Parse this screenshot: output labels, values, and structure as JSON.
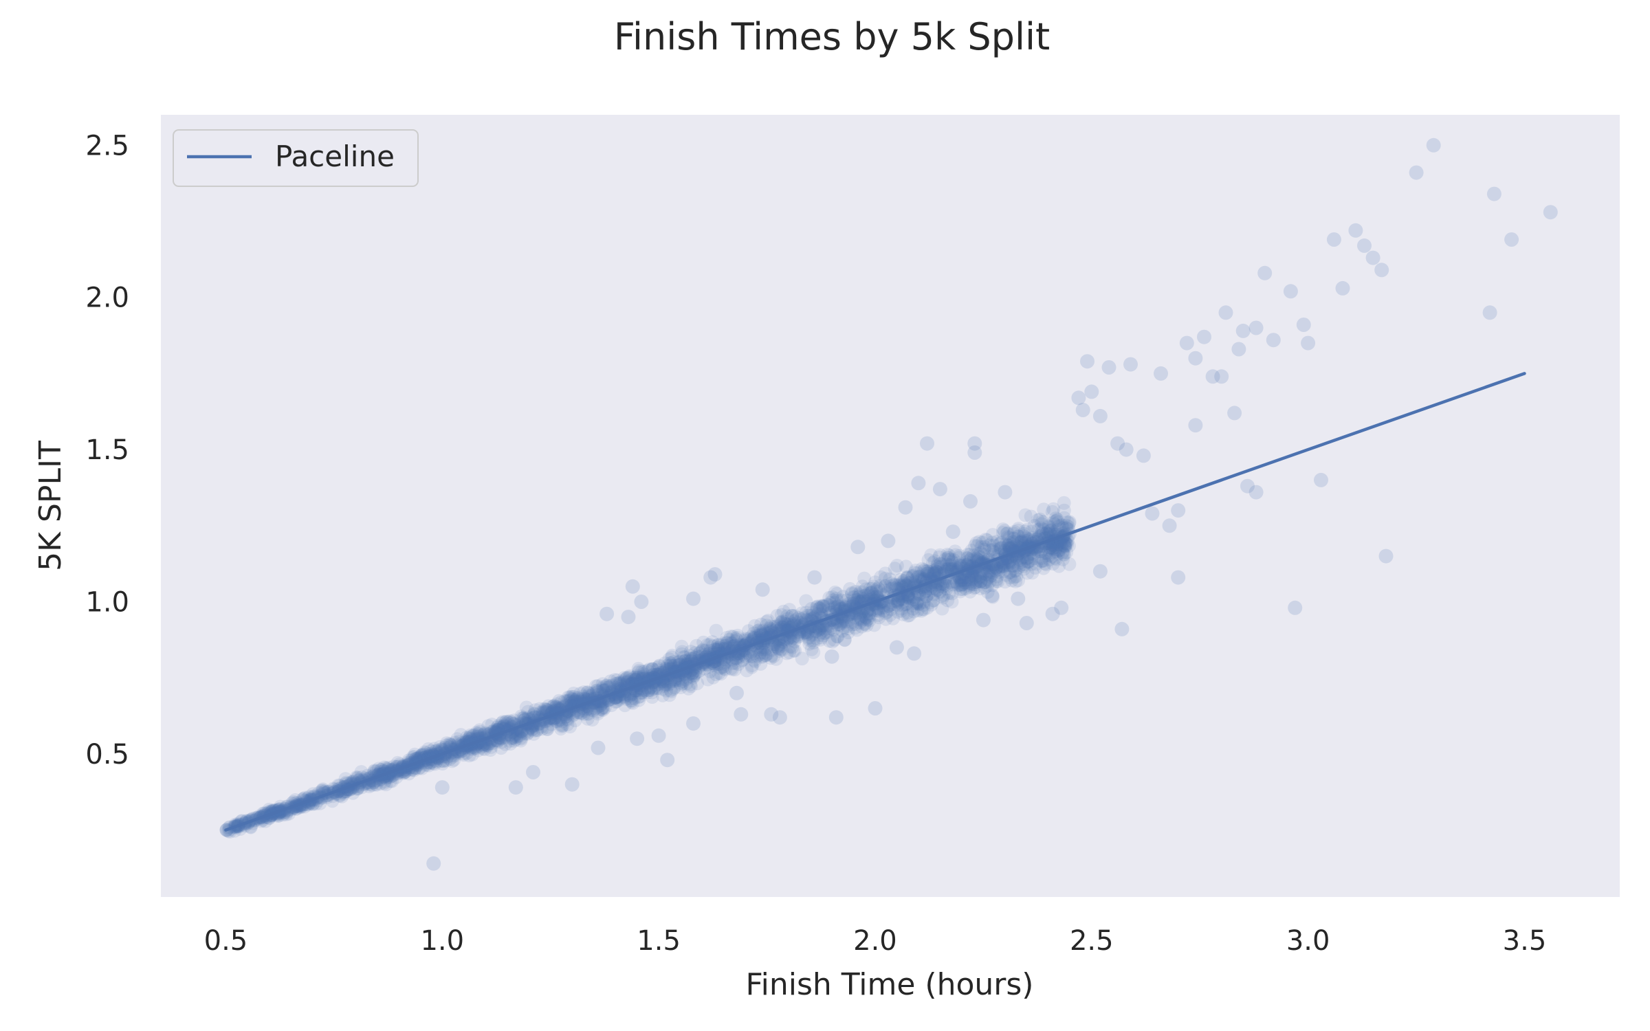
{
  "chart_data": {
    "type": "scatter",
    "title": "Finish Times by 5k Split",
    "xlabel": "Finish Time (hours)",
    "ylabel": "5K SPLIT",
    "xlim": [
      0.35,
      3.72
    ],
    "ylim": [
      0.03,
      2.6
    ],
    "x_ticks": [
      0.5,
      1.0,
      1.5,
      2.0,
      2.5,
      3.0,
      3.5
    ],
    "y_ticks": [
      0.5,
      1.0,
      1.5,
      2.0,
      2.5
    ],
    "x_tick_labels": [
      "0.5",
      "1.0",
      "1.5",
      "2.0",
      "2.5",
      "3.0",
      "3.5"
    ],
    "y_tick_labels": [
      "0.5",
      "1.0",
      "1.5",
      "2.0",
      "2.5"
    ],
    "grid": false,
    "legend_position": "top-left",
    "colors": {
      "background": "#eaeaf2",
      "series": "#4c72b0"
    },
    "series": [
      {
        "name": "Paceline",
        "kind": "line",
        "x": [
          0.5,
          3.5
        ],
        "y": [
          0.25,
          1.75
        ]
      },
      {
        "kind": "scatter",
        "x": [
          3.29,
          3.25,
          3.43,
          3.56,
          3.47,
          3.06,
          3.11,
          3.13,
          3.15,
          3.17,
          3.08,
          3.42,
          2.9,
          2.96,
          2.81,
          2.85,
          2.88,
          2.84,
          2.92,
          2.99,
          3.0,
          2.76,
          2.72,
          2.66,
          2.59,
          2.54,
          2.49,
          2.5,
          2.47,
          2.74,
          2.78,
          2.8,
          2.83,
          2.74,
          2.12,
          2.23,
          2.23,
          2.48,
          2.52,
          2.56,
          2.58,
          2.62,
          2.86,
          2.88,
          3.03,
          3.18,
          2.97,
          2.7,
          2.57,
          2.43,
          2.41,
          2.35,
          2.25,
          1.69,
          1.76,
          1.78,
          1.91,
          2.0,
          2.09,
          1.52,
          1.5,
          1.3,
          1.17,
          0.98,
          1.0,
          1.43,
          1.62,
          1.44,
          1.38,
          1.46,
          1.58,
          1.63,
          1.74,
          1.86,
          2.18,
          2.03,
          1.96,
          2.07,
          2.3,
          2.22,
          2.15,
          2.1,
          2.64,
          2.68,
          2.7,
          2.52,
          1.68,
          1.58,
          1.36,
          2.33,
          2.27,
          2.05,
          1.9,
          1.45,
          1.33,
          1.21
        ],
        "y": [
          2.5,
          2.41,
          2.34,
          2.28,
          2.19,
          2.19,
          2.22,
          2.17,
          2.13,
          2.09,
          2.03,
          1.95,
          2.08,
          2.02,
          1.95,
          1.89,
          1.9,
          1.83,
          1.86,
          1.91,
          1.85,
          1.87,
          1.85,
          1.75,
          1.78,
          1.77,
          1.79,
          1.69,
          1.67,
          1.8,
          1.74,
          1.74,
          1.62,
          1.58,
          1.52,
          1.52,
          1.49,
          1.63,
          1.61,
          1.52,
          1.5,
          1.48,
          1.38,
          1.36,
          1.4,
          1.15,
          0.98,
          1.08,
          0.91,
          0.98,
          0.96,
          0.93,
          0.94,
          0.63,
          0.63,
          0.62,
          0.62,
          0.65,
          0.83,
          0.48,
          0.56,
          0.4,
          0.39,
          0.14,
          0.39,
          0.95,
          1.08,
          1.05,
          0.96,
          1.0,
          1.01,
          1.09,
          1.04,
          1.08,
          1.23,
          1.2,
          1.18,
          1.31,
          1.36,
          1.33,
          1.37,
          1.39,
          1.29,
          1.25,
          1.3,
          1.1,
          0.7,
          0.6,
          0.52,
          1.01,
          1.02,
          0.85,
          0.82,
          0.55,
          0.68,
          0.44
        ]
      }
    ]
  }
}
